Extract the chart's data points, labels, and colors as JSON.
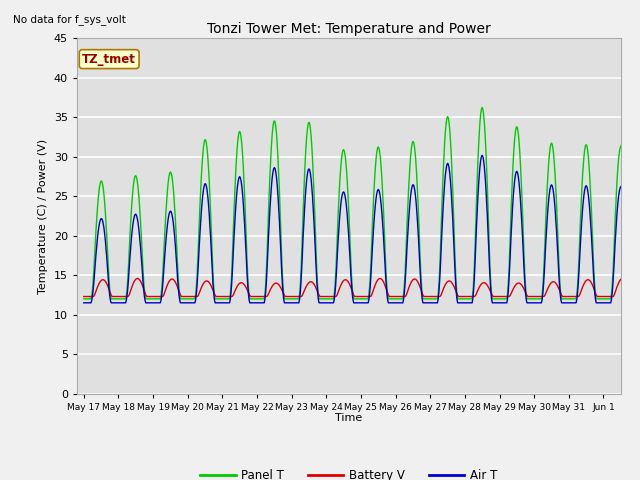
{
  "title": "Tonzi Tower Met: Temperature and Power",
  "top_left_text": "No data for f_sys_volt",
  "xlabel": "Time",
  "ylabel": "Temperature (C) / Power (V)",
  "ylim": [
    0,
    45
  ],
  "yticks": [
    0,
    5,
    10,
    15,
    20,
    25,
    30,
    35,
    40,
    45
  ],
  "xtick_labels": [
    "May 17",
    "May 18",
    "May 19",
    "May 20",
    "May 21",
    "May 22",
    "May 23",
    "May 24",
    "May 25",
    "May 26",
    "May 27",
    "May 28",
    "May 29",
    "May 30",
    "May 31",
    "Jun 1"
  ],
  "legend_labels": [
    "Panel T",
    "Battery V",
    "Air T"
  ],
  "legend_colors": [
    "#00cc00",
    "#dd0000",
    "#0000cc"
  ],
  "panel_color": "#00cc00",
  "battery_color": "#dd0000",
  "air_color": "#0000cc",
  "bg_color": "#e8e8e8",
  "plot_bg_color": "#e0e0e0",
  "grid_color": "#ffffff",
  "inset_label": "TZ_tmet",
  "inset_bg": "#ffffcc",
  "inset_border": "#cc8800"
}
